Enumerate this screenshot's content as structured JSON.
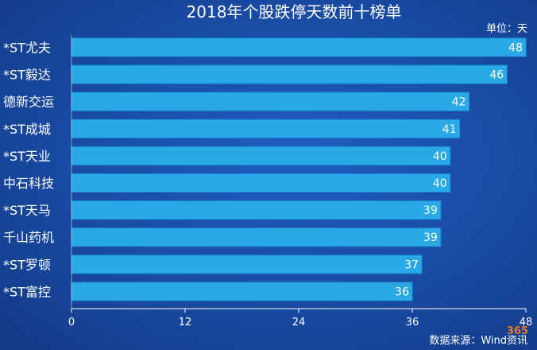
{
  "chart_data": {
    "type": "bar",
    "orientation": "horizontal",
    "title": "2018年个股跌停天数前十榜单",
    "unit_label": "单位：天",
    "categories": [
      "*ST尤夫",
      "*ST毅达",
      "德新交运",
      "*ST成城",
      "*ST天业",
      "中石科技",
      "*ST天马",
      "千山药机",
      "*ST罗顿",
      "*ST富控"
    ],
    "values": [
      48,
      46,
      42,
      41,
      40,
      40,
      39,
      39,
      37,
      36
    ],
    "xlim": [
      0,
      48
    ],
    "xticks": [
      "0",
      "12",
      "24",
      "36",
      "48"
    ],
    "source": "数据来源：Wind资讯",
    "grid": false,
    "colors": {
      "bar": "#29a9e8",
      "bar_edge": "#1d8fd0",
      "axis": "#ffffff"
    }
  },
  "watermark": "365"
}
